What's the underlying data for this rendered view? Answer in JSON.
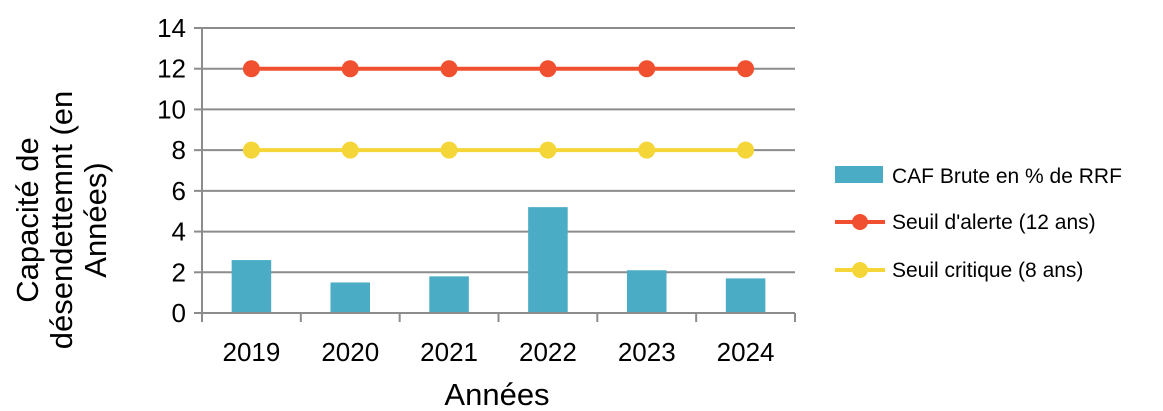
{
  "chart_data": {
    "type": "bar",
    "categories": [
      "2019",
      "2020",
      "2021",
      "2022",
      "2023",
      "2024"
    ],
    "series": [
      {
        "name": "CAF Brute en % de RRF",
        "kind": "bar",
        "color": "#4bacc6",
        "values": [
          2.6,
          1.5,
          1.8,
          5.2,
          2.1,
          1.7
        ]
      },
      {
        "name": "Seuil d'alerte (12 ans)",
        "kind": "line",
        "color": "#f0502f",
        "values": [
          12,
          12,
          12,
          12,
          12,
          12
        ]
      },
      {
        "name": "Seuil critique (8 ans)",
        "kind": "line",
        "color": "#f5d638",
        "values": [
          8,
          8,
          8,
          8,
          8,
          8
        ]
      }
    ],
    "xlabel": "Années",
    "ylabel_lines": [
      "Capacité de",
      "désendettemnt (en",
      "Années)"
    ],
    "ylim": [
      0,
      14
    ],
    "yticks": [
      "0",
      "2",
      "4",
      "6",
      "8",
      "10",
      "12",
      "14"
    ],
    "grid": true,
    "legend_position": "right"
  }
}
